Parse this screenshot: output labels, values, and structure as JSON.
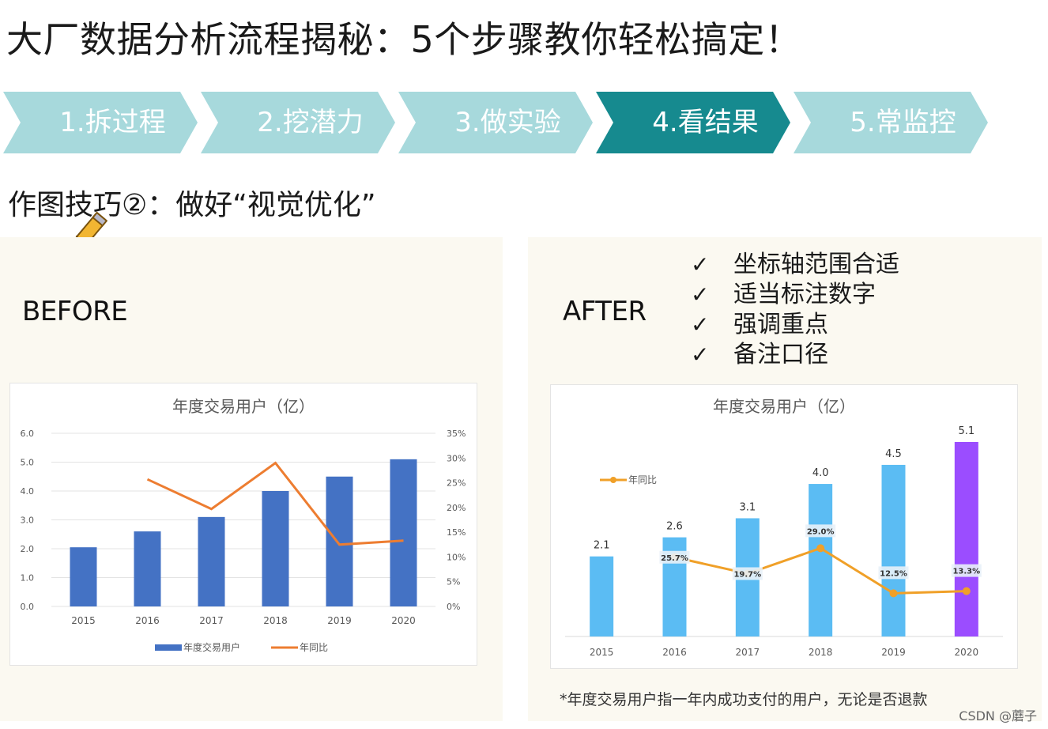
{
  "title": "大厂数据分析流程揭秘：5个步骤教你轻松搞定！",
  "steps": [
    {
      "label": "1.拆过程",
      "active": false
    },
    {
      "label": "2.挖潜力",
      "active": false
    },
    {
      "label": "3.做实验",
      "active": false
    },
    {
      "label": "4.看结果",
      "active": true
    },
    {
      "label": "5.常监控",
      "active": false
    }
  ],
  "colors": {
    "step_inactive": "#a7d9dc",
    "step_active": "#168a8f",
    "bar_before": "#4472c4",
    "line": "#ed7d31",
    "bar_after": "#5bbcf3",
    "bar_highlight": "#9b4dff",
    "panel_bg": "#fbf9f1"
  },
  "subtitle": "作图技巧②：做好“视觉优化”",
  "before_label": "BEFORE",
  "after_label": "AFTER",
  "tips": [
    {
      "check": "✓",
      "text": "坐标轴范围合适"
    },
    {
      "check": "✓",
      "text": "适当标注数字"
    },
    {
      "check": "✓",
      "text": "强调重点"
    },
    {
      "check": "✓",
      "text": "备注口径"
    }
  ],
  "footnote": "*年度交易用户指一年内成功支付的用户，无论是否退款",
  "watermark": "CSDN @蘑子",
  "chart_data": [
    {
      "id": "before",
      "type": "bar",
      "title": "年度交易用户（亿）",
      "categories": [
        "2015",
        "2016",
        "2017",
        "2018",
        "2019",
        "2020"
      ],
      "series": [
        {
          "name": "年度交易用户",
          "type": "bar",
          "axis": "left",
          "values": [
            2.05,
            2.6,
            3.1,
            4.0,
            4.5,
            5.1
          ]
        },
        {
          "name": "年同比",
          "type": "line",
          "axis": "right",
          "values": [
            null,
            25.7,
            19.7,
            29.0,
            12.5,
            13.3
          ]
        }
      ],
      "y_left": {
        "min": 0,
        "max": 6,
        "ticks": [
          "0.0",
          "1.0",
          "2.0",
          "3.0",
          "4.0",
          "5.0",
          "6.0"
        ]
      },
      "y_right": {
        "min": 0,
        "max": 35,
        "ticks": [
          "0%",
          "5%",
          "10%",
          "15%",
          "20%",
          "25%",
          "30%",
          "35%"
        ]
      },
      "grid": true,
      "legend": "bottom"
    },
    {
      "id": "after",
      "type": "bar",
      "title": "年度交易用户（亿）",
      "categories": [
        "2015",
        "2016",
        "2017",
        "2018",
        "2019",
        "2020"
      ],
      "series": [
        {
          "name": "年度交易用户",
          "type": "bar",
          "values": [
            2.1,
            2.6,
            3.1,
            4.0,
            4.5,
            5.1
          ],
          "labels": [
            "2.1",
            "2.6",
            "3.1",
            "4.0",
            "4.5",
            "5.1"
          ],
          "highlight_index": 5
        },
        {
          "name": "年同比",
          "type": "line",
          "values": [
            null,
            25.7,
            19.7,
            29.0,
            12.5,
            13.3
          ],
          "labels": [
            "",
            "25.7%",
            "19.7%",
            "29.0%",
            "12.5%",
            "13.3%"
          ]
        }
      ],
      "grid": false,
      "legend": "top-left"
    }
  ]
}
